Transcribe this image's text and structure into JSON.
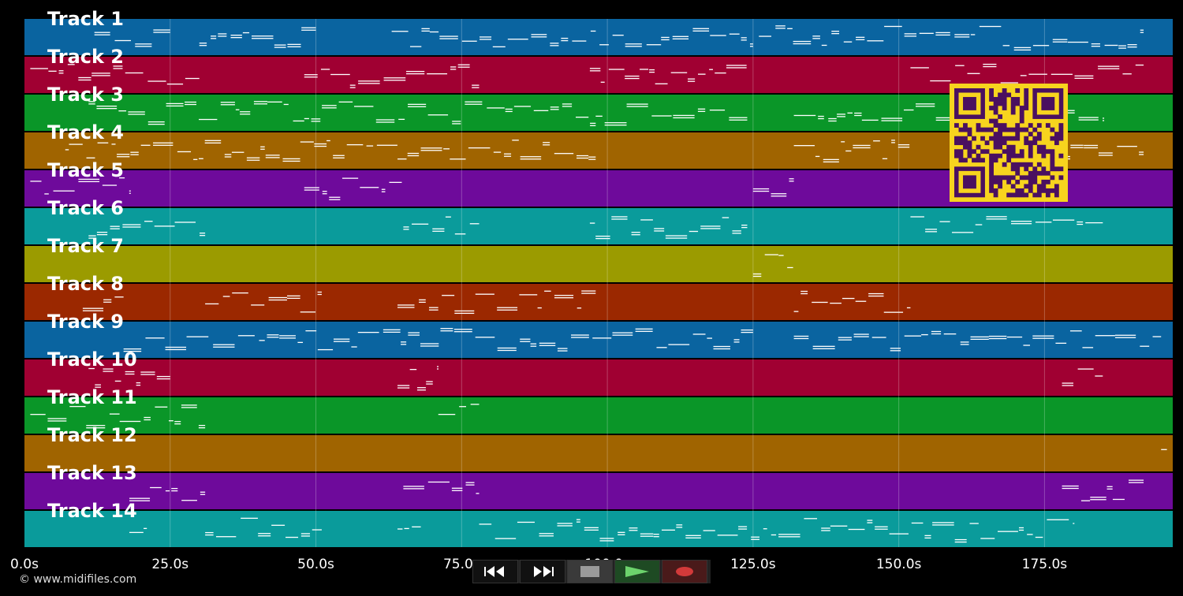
{
  "tracks": [
    {
      "label": "Track 1",
      "color": "#0a64a0"
    },
    {
      "label": "Track 2",
      "color": "#a00032"
    },
    {
      "label": "Track 3",
      "color": "#0a9628"
    },
    {
      "label": "Track 4",
      "color": "#a06400"
    },
    {
      "label": "Track 5",
      "color": "#6e0a9b"
    },
    {
      "label": "Track 6",
      "color": "#0a9b9b"
    },
    {
      "label": "Track 7",
      "color": "#9b9b00"
    },
    {
      "label": "Track 8",
      "color": "#9b2800"
    },
    {
      "label": "Track 9",
      "color": "#0a64a0"
    },
    {
      "label": "Track 10",
      "color": "#a00032"
    },
    {
      "label": "Track 11",
      "color": "#0a9628"
    },
    {
      "label": "Track 12",
      "color": "#a06400"
    },
    {
      "label": "Track 13",
      "color": "#6e0a9b"
    },
    {
      "label": "Track 14",
      "color": "#0a9b9b"
    }
  ],
  "time_axis": {
    "ticks": [
      "0.0s",
      "25.0s",
      "50.0s",
      "75.0s",
      "100.0s",
      "125.0s",
      "150.0s",
      "175.0s"
    ],
    "tick_values": [
      0,
      25,
      50,
      75,
      100,
      125,
      150,
      175
    ],
    "max_seconds": 197
  },
  "copyright": "© www.midifiles.com",
  "controls": [
    {
      "name": "rewind-button",
      "icon": "rewind-icon"
    },
    {
      "name": "fast-forward-button",
      "icon": "fast-forward-icon"
    },
    {
      "name": "stop-button",
      "icon": "stop-icon"
    },
    {
      "name": "play-button",
      "icon": "play-icon"
    },
    {
      "name": "record-button",
      "icon": "record-icon"
    }
  ],
  "qr_icon": "qr-code-icon",
  "note_color": "#ffffff",
  "qr_colors": {
    "bg": "#f7d41e",
    "fg": "#4a1060"
  }
}
